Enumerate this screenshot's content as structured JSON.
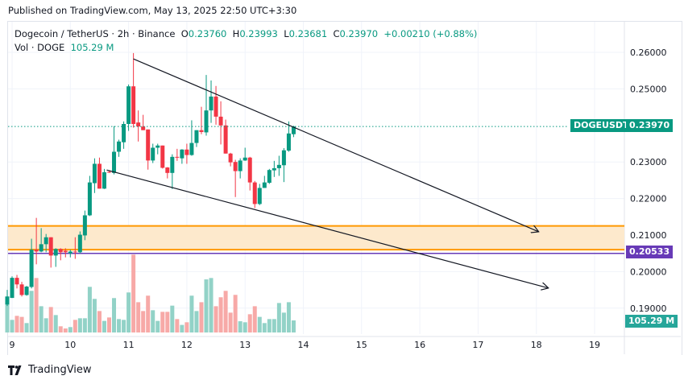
{
  "published": "Published on TradingView.com, May 13, 2025 22:50 UTC+3:30",
  "legend": {
    "symbol": "Dogecoin / TetherUS · 2h · Binance",
    "o_label": "O",
    "o": "0.23760",
    "h_label": "H",
    "h": "0.23993",
    "l_label": "L",
    "l": "0.23681",
    "c_label": "C",
    "c": "0.23970",
    "change": "+0.00210 (+0.88%)",
    "vol_label": "Vol · DOGE",
    "vol": "105.29 M"
  },
  "price_tags": {
    "symbol": "DOGEUSDT",
    "last": "0.23970",
    "level": "0.20533",
    "volume": "105.29 M"
  },
  "footer": {
    "brand": "TradingView",
    "logo_icon": "tradingview-logo-icon"
  },
  "colors": {
    "up": "#089981",
    "down": "#f23645",
    "up_vol": "#92d2c7",
    "down_vol": "#f7a9a7",
    "zone": "#ff9800",
    "zone_fill": "#fde9cc",
    "level": "#673ab7",
    "trendline": "#131722"
  },
  "chart_data": {
    "type": "candlestick",
    "interval": "2h",
    "ylim": [
      0.187,
      0.262
    ],
    "y_ticks": [
      "0.26000",
      "0.25000",
      "0.23000",
      "0.22000",
      "0.21000",
      "0.20000",
      "0.19000"
    ],
    "x_ticks": [
      "9",
      "10",
      "11",
      "12",
      "13",
      "14",
      "15",
      "16",
      "17",
      "18",
      "19"
    ],
    "x_range_days": [
      "2025-05-08T21:00",
      "2025-05-19T18:00"
    ],
    "grid": true,
    "columns": [
      "time",
      "open",
      "high",
      "low",
      "close",
      "volume_M"
    ],
    "candles": [
      [
        "2025-05-08T22:00",
        0.191,
        0.195,
        0.1906,
        0.1932,
        246
      ],
      [
        "2025-05-09T00:00",
        0.1928,
        0.1987,
        0.1928,
        0.1983,
        110
      ],
      [
        "2025-05-09T02:00",
        0.1983,
        0.1991,
        0.1954,
        0.1965,
        145
      ],
      [
        "2025-05-09T04:00",
        0.1965,
        0.1972,
        0.1932,
        0.1936,
        136
      ],
      [
        "2025-05-09T06:00",
        0.1936,
        0.1961,
        0.1934,
        0.1959,
        82
      ],
      [
        "2025-05-09T08:00",
        0.1958,
        0.209,
        0.1954,
        0.206,
        363
      ],
      [
        "2025-05-09T10:00",
        0.206,
        0.2147,
        0.202,
        0.2055,
        475
      ],
      [
        "2025-05-09T12:00",
        0.2055,
        0.2119,
        0.2053,
        0.2075,
        229
      ],
      [
        "2025-05-09T14:00",
        0.2075,
        0.2103,
        0.2053,
        0.2094,
        124
      ],
      [
        "2025-05-09T16:00",
        0.2094,
        0.2094,
        0.2011,
        0.2044,
        222
      ],
      [
        "2025-05-09T18:00",
        0.2044,
        0.2064,
        0.2013,
        0.2062,
        152
      ],
      [
        "2025-05-09T20:00",
        0.2062,
        0.2064,
        0.2031,
        0.2053,
        54
      ],
      [
        "2025-05-09T22:00",
        0.2057,
        0.2064,
        0.2039,
        0.2053,
        35
      ],
      [
        "2025-05-10T00:00",
        0.205,
        0.206,
        0.2039,
        0.2055,
        47
      ],
      [
        "2025-05-10T02:00",
        0.2055,
        0.2094,
        0.2035,
        0.2053,
        110
      ],
      [
        "2025-05-10T04:00",
        0.2053,
        0.211,
        0.205,
        0.2101,
        124
      ],
      [
        "2025-05-10T06:00",
        0.2099,
        0.2167,
        0.2086,
        0.2154,
        124
      ],
      [
        "2025-05-10T08:00",
        0.2154,
        0.2262,
        0.2152,
        0.2244,
        398
      ],
      [
        "2025-05-10T10:00",
        0.2242,
        0.231,
        0.2215,
        0.2295,
        293
      ],
      [
        "2025-05-10T12:00",
        0.2295,
        0.2312,
        0.2227,
        0.2227,
        187
      ],
      [
        "2025-05-10T14:00",
        0.2227,
        0.2281,
        0.2226,
        0.2272,
        101
      ],
      [
        "2025-05-10T16:00",
        0.2273,
        0.2277,
        0.227,
        0.2271,
        131
      ],
      [
        "2025-05-10T18:00",
        0.227,
        0.2398,
        0.2266,
        0.2328,
        300
      ],
      [
        "2025-05-10T20:00",
        0.2328,
        0.2361,
        0.2314,
        0.2356,
        117
      ],
      [
        "2025-05-10T22:00",
        0.2354,
        0.2411,
        0.2336,
        0.2404,
        110
      ],
      [
        "2025-05-11T00:00",
        0.2404,
        0.2512,
        0.2385,
        0.2507,
        349
      ],
      [
        "2025-05-11T02:00",
        0.2507,
        0.2598,
        0.2394,
        0.2404,
        679
      ],
      [
        "2025-05-11T04:00",
        0.2408,
        0.2441,
        0.2356,
        0.2397,
        264
      ],
      [
        "2025-05-11T06:00",
        0.2397,
        0.2429,
        0.2387,
        0.2387,
        187
      ],
      [
        "2025-05-11T08:00",
        0.2389,
        0.2389,
        0.2279,
        0.2304,
        321
      ],
      [
        "2025-05-11T10:00",
        0.2304,
        0.235,
        0.2297,
        0.2339,
        194
      ],
      [
        "2025-05-11T12:00",
        0.2339,
        0.235,
        0.2321,
        0.2345,
        101
      ],
      [
        "2025-05-11T14:00",
        0.2345,
        0.2345,
        0.2282,
        0.2284,
        180
      ],
      [
        "2025-05-11T16:00",
        0.2285,
        0.2286,
        0.2255,
        0.227,
        180
      ],
      [
        "2025-05-11T18:00",
        0.227,
        0.2321,
        0.2226,
        0.2314,
        234
      ],
      [
        "2025-05-11T20:00",
        0.2314,
        0.2336,
        0.2303,
        0.2312,
        117
      ],
      [
        "2025-05-11T22:00",
        0.231,
        0.2335,
        0.2295,
        0.2334,
        66
      ],
      [
        "2025-05-12T00:00",
        0.2334,
        0.235,
        0.2295,
        0.2319,
        89
      ],
      [
        "2025-05-12T02:00",
        0.2319,
        0.2414,
        0.2317,
        0.2352,
        321
      ],
      [
        "2025-05-12T04:00",
        0.2352,
        0.2387,
        0.2341,
        0.2387,
        187
      ],
      [
        "2025-05-12T06:00",
        0.2387,
        0.2451,
        0.2376,
        0.2382,
        264
      ],
      [
        "2025-05-12T08:00",
        0.2381,
        0.2538,
        0.2372,
        0.2441,
        463
      ],
      [
        "2025-05-12T10:00",
        0.2441,
        0.2523,
        0.2407,
        0.2479,
        475
      ],
      [
        "2025-05-12T12:00",
        0.2479,
        0.2508,
        0.2402,
        0.2424,
        229
      ],
      [
        "2025-05-12T14:00",
        0.2424,
        0.2466,
        0.2348,
        0.24,
        307
      ],
      [
        "2025-05-12T16:00",
        0.24,
        0.2416,
        0.2323,
        0.2323,
        363
      ],
      [
        "2025-05-12T18:00",
        0.2323,
        0.2325,
        0.2288,
        0.2299,
        173
      ],
      [
        "2025-05-12T20:00",
        0.23,
        0.2306,
        0.2204,
        0.2275,
        328
      ],
      [
        "2025-05-12T22:00",
        0.2275,
        0.231,
        0.2255,
        0.2304,
        98
      ],
      [
        "2025-05-13T00:00",
        0.2304,
        0.2339,
        0.2303,
        0.2312,
        89
      ],
      [
        "2025-05-13T02:00",
        0.2312,
        0.2314,
        0.2222,
        0.2244,
        159
      ],
      [
        "2025-05-13T04:00",
        0.2244,
        0.2248,
        0.2174,
        0.2185,
        229
      ],
      [
        "2025-05-13T06:00",
        0.2185,
        0.224,
        0.2182,
        0.2229,
        136
      ],
      [
        "2025-05-13T08:00",
        0.2229,
        0.2262,
        0.2229,
        0.2244,
        82
      ],
      [
        "2025-05-13T10:00",
        0.2243,
        0.2281,
        0.224,
        0.2278,
        117
      ],
      [
        "2025-05-13T12:00",
        0.2277,
        0.2303,
        0.2259,
        0.2283,
        117
      ],
      [
        "2025-05-13T14:00",
        0.2283,
        0.2317,
        0.2262,
        0.2292,
        257
      ],
      [
        "2025-05-13T16:00",
        0.2291,
        0.2338,
        0.2245,
        0.2332,
        173
      ],
      [
        "2025-05-13T18:00",
        0.2331,
        0.2411,
        0.2328,
        0.2378,
        264
      ],
      [
        "2025-05-13T20:00",
        0.2376,
        0.2399,
        0.2368,
        0.2397,
        105.29
      ]
    ],
    "last_price": 0.2397,
    "horizontal_levels": [
      {
        "price": 0.20533,
        "color": "#673ab7"
      }
    ],
    "zone": {
      "top": 0.2125,
      "bottom": 0.206
    },
    "trendlines": [
      {
        "from": [
          "2025-05-11T02:00",
          0.2582
        ],
        "to": [
          "2025-05-18T01:00",
          0.2109
        ],
        "arrow": true
      },
      {
        "from": [
          "2025-05-10T15:00",
          0.2278
        ],
        "to": [
          "2025-05-18T05:00",
          0.1955
        ],
        "arrow": true
      }
    ]
  }
}
